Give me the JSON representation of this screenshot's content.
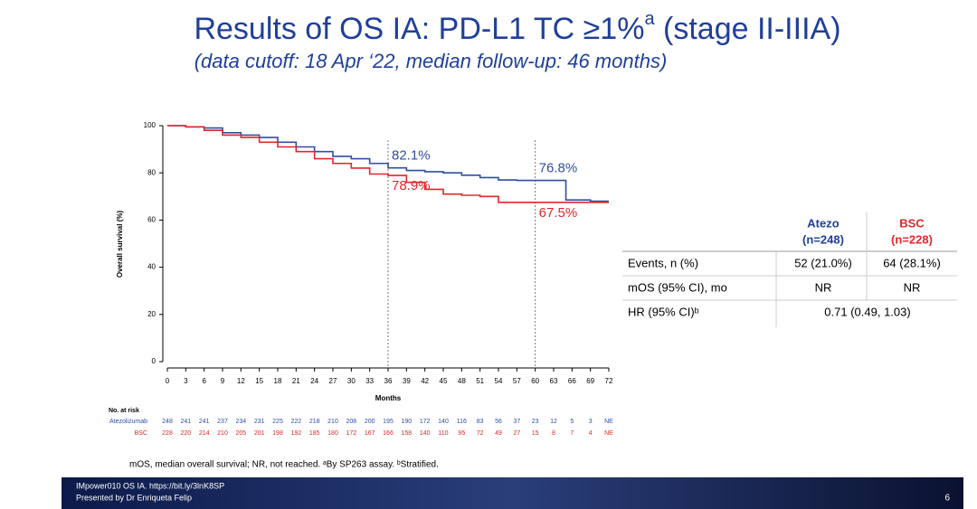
{
  "header": {
    "title": "Results of OS IA: PD-L1 TC ≥1%",
    "title_sup": "a",
    "title_end": " (stage II-IIIA)",
    "subtitle": "(data cutoff: 18 Apr ‘22, median follow-up: 46 months)"
  },
  "chart_data": {
    "type": "line",
    "step": true,
    "x_label": "Months",
    "y_label": "Overall survival (%)",
    "x": [
      0,
      3,
      6,
      9,
      12,
      15,
      18,
      21,
      24,
      27,
      30,
      33,
      36,
      39,
      42,
      45,
      48,
      51,
      54,
      57,
      60,
      63,
      65,
      66,
      69,
      72
    ],
    "series": [
      {
        "name": "Atezolizumab",
        "color": "#2f4ea3",
        "values": [
          100,
          99.5,
          99,
          97,
          96,
          95,
          93,
          91,
          89,
          87,
          86,
          84,
          82.1,
          81,
          80.5,
          80,
          79,
          78,
          77,
          76.8,
          76.8,
          76.8,
          68.5,
          68.5,
          68,
          68
        ],
        "annotations": [
          {
            "x": 36,
            "y": 82.1,
            "label": "82.1%"
          },
          {
            "x": 60,
            "y": 76.8,
            "label": "76.8%"
          }
        ]
      },
      {
        "name": "BSC",
        "color": "#e3262b",
        "values": [
          100,
          99.5,
          98,
          96,
          95,
          93,
          91,
          89,
          86,
          84,
          82,
          79.5,
          78.9,
          76,
          73,
          71,
          70.5,
          70,
          67.5,
          67.5,
          67.5,
          67.5,
          67.5,
          67.5,
          67.5,
          67.5
        ],
        "annotations": [
          {
            "x": 36,
            "y": 78.9,
            "label": "78.9%"
          },
          {
            "x": 60,
            "y": 67.5,
            "label": "67.5%"
          }
        ]
      }
    ],
    "xlim": [
      0,
      72
    ],
    "xticks": [
      0,
      3,
      6,
      9,
      12,
      15,
      18,
      21,
      24,
      27,
      30,
      33,
      36,
      39,
      42,
      45,
      48,
      51,
      54,
      57,
      60,
      63,
      66,
      69,
      72
    ],
    "ylim": [
      0,
      100
    ],
    "yticks": [
      0,
      20,
      40,
      60,
      80,
      100
    ],
    "reference_lines": [
      36,
      60
    ]
  },
  "risk_table": {
    "title": "No. at risk",
    "rows": [
      {
        "name": "Atezolizumab",
        "values": [
          248,
          241,
          241,
          237,
          234,
          231,
          225,
          222,
          218,
          210,
          208,
          200,
          195,
          190,
          172,
          140,
          116,
          83,
          56,
          37,
          23,
          12,
          5,
          3,
          "NE"
        ]
      },
      {
        "name": "BSC",
        "values": [
          228,
          220,
          214,
          210,
          205,
          201,
          198,
          192,
          185,
          180,
          172,
          167,
          166,
          158,
          140,
          110,
          95,
          72,
          49,
          27,
          15,
          8,
          7,
          4,
          "NE"
        ]
      }
    ]
  },
  "table": {
    "columns": [
      {
        "name": "Atezo",
        "n": "(n=248)"
      },
      {
        "name": "BSC",
        "n": "(n=228)"
      }
    ],
    "rows": [
      [
        "Events, n (%)",
        "52 (21.0%)",
        "64 (28.1%)"
      ],
      [
        "mOS (95% CI), mo",
        "NR",
        "NR"
      ],
      [
        "HR (95% CI)ᵇ",
        "0.71 (0.49, 1.03)"
      ]
    ]
  },
  "footnote": "mOS, median overall survival; NR, not reached. ᵃBy SP263 assay. ᵇStratified.",
  "footer": {
    "source": "IMpower010 OS IA. https://bit.ly/3lnK8SP",
    "presenter": "Presented by Dr Enriqueta Felip",
    "page": "6"
  }
}
